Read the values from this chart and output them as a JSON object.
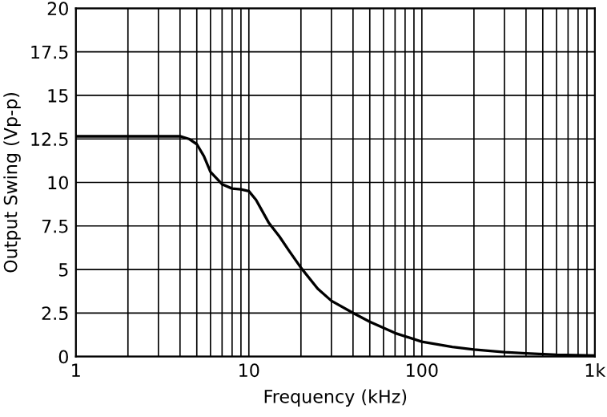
{
  "chart_data": {
    "type": "line",
    "xlabel": "Frequency (kHz)",
    "ylabel": "Output Swing (Vp-p)",
    "log": "x",
    "grid": true,
    "marker": "none",
    "line_style": "solid",
    "series": [
      {
        "color": "#000000",
        "x": [
          1,
          2,
          3,
          4,
          4.5,
          5,
          5.5,
          6,
          7,
          8,
          9,
          10,
          11,
          13,
          15,
          17,
          20,
          25,
          30,
          40,
          50,
          70,
          100,
          150,
          200,
          300,
          400,
          600,
          1000
        ],
        "values": [
          12.65,
          12.65,
          12.65,
          12.65,
          12.5,
          12.2,
          11.5,
          10.6,
          9.9,
          9.65,
          9.6,
          9.5,
          9.0,
          7.7,
          6.9,
          6.1,
          5.1,
          3.9,
          3.2,
          2.5,
          2.0,
          1.35,
          0.85,
          0.55,
          0.4,
          0.25,
          0.18,
          0.1,
          0.05
        ]
      }
    ],
    "xlim": [
      1,
      1000
    ],
    "xticks": [
      1,
      10,
      100,
      {
        "value": 1000,
        "label": "1k"
      }
    ],
    "ylim": [
      0,
      20
    ],
    "yticks": [
      0,
      2.5,
      5,
      7.5,
      10,
      12.5,
      15,
      17.5,
      20
    ]
  }
}
